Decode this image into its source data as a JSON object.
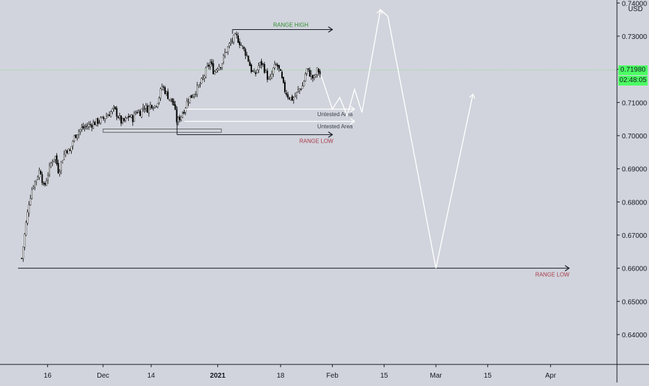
{
  "chart_data": {
    "type": "candlestick",
    "symbol_unit": "USD",
    "ylim": [
      0.63,
      0.74
    ],
    "y_ticks": [
      "0.74000",
      "0.73000",
      "0.72000",
      "0.71000",
      "0.70000",
      "0.69000",
      "0.68000",
      "0.67000",
      "0.66000",
      "0.65000",
      "0.64000"
    ],
    "x_ticks": [
      {
        "label": "16",
        "date": "2020-11-16"
      },
      {
        "label": "Dec",
        "date": "2020-12-01"
      },
      {
        "label": "14",
        "date": "2020-12-14"
      },
      {
        "label": "2021",
        "date": "2021-01-01"
      },
      {
        "label": "18",
        "date": "2021-01-18"
      },
      {
        "label": "Feb",
        "date": "2021-02-01"
      },
      {
        "label": "15",
        "date": "2021-02-15"
      },
      {
        "label": "Mar",
        "date": "2021-03-01"
      },
      {
        "label": "15",
        "date": "2021-03-15"
      },
      {
        "label": "Apr",
        "date": "2021-04-01"
      }
    ],
    "last_price": "0.71980",
    "countdown": "02:48:05",
    "colors": {
      "background": "#d1d4dc",
      "candle_up": "#ffffff",
      "candle_down": "#000000",
      "wick": "#000000",
      "projection": "#ffffff",
      "last_price_tag": "#4cff63",
      "range_high_text": "#2e8b2e",
      "range_low_text": "#a83a4a",
      "price_line": "#7ee07e"
    },
    "price_path": [
      [
        "2020-11-09",
        0.663
      ],
      [
        "2020-11-10",
        0.672
      ],
      [
        "2020-11-11",
        0.68
      ],
      [
        "2020-11-12",
        0.685
      ],
      [
        "2020-11-13",
        0.687
      ],
      [
        "2020-11-14",
        0.69
      ],
      [
        "2020-11-15",
        0.684
      ],
      [
        "2020-11-16",
        0.688
      ],
      [
        "2020-11-17",
        0.692
      ],
      [
        "2020-11-18",
        0.694
      ],
      [
        "2020-11-19",
        0.689
      ],
      [
        "2020-11-20",
        0.693
      ],
      [
        "2020-11-21",
        0.696
      ],
      [
        "2020-11-22",
        0.695
      ],
      [
        "2020-11-23",
        0.699
      ],
      [
        "2020-11-24",
        0.701
      ],
      [
        "2020-11-25",
        0.702
      ],
      [
        "2020-11-26",
        0.7025
      ],
      [
        "2020-11-27",
        0.703
      ],
      [
        "2020-11-28",
        0.7035
      ],
      [
        "2020-11-29",
        0.704
      ],
      [
        "2020-11-30",
        0.7045
      ],
      [
        "2020-12-01",
        0.705
      ],
      [
        "2020-12-02",
        0.706
      ],
      [
        "2020-12-03",
        0.707
      ],
      [
        "2020-12-04",
        0.708
      ],
      [
        "2020-12-05",
        0.706
      ],
      [
        "2020-12-06",
        0.704
      ],
      [
        "2020-12-07",
        0.7045
      ],
      [
        "2020-12-08",
        0.706
      ],
      [
        "2020-12-09",
        0.705
      ],
      [
        "2020-12-10",
        0.7075
      ],
      [
        "2020-12-11",
        0.707
      ],
      [
        "2020-12-12",
        0.709
      ],
      [
        "2020-12-13",
        0.708
      ],
      [
        "2020-12-14",
        0.7095
      ],
      [
        "2020-12-15",
        0.709
      ],
      [
        "2020-12-16",
        0.711
      ],
      [
        "2020-12-17",
        0.715
      ],
      [
        "2020-12-18",
        0.713
      ],
      [
        "2020-12-19",
        0.711
      ],
      [
        "2020-12-20",
        0.71
      ],
      [
        "2020-12-21",
        0.704
      ],
      [
        "2020-12-22",
        0.706
      ],
      [
        "2020-12-23",
        0.708
      ],
      [
        "2020-12-24",
        0.711
      ],
      [
        "2020-12-25",
        0.712
      ],
      [
        "2020-12-26",
        0.7135
      ],
      [
        "2020-12-27",
        0.715
      ],
      [
        "2020-12-28",
        0.717
      ],
      [
        "2020-12-29",
        0.72
      ],
      [
        "2020-12-30",
        0.722
      ],
      [
        "2020-12-31",
        0.719
      ],
      [
        "2021-01-01",
        0.721
      ],
      [
        "2021-01-02",
        0.7215
      ],
      [
        "2021-01-03",
        0.725
      ],
      [
        "2021-01-04",
        0.727
      ],
      [
        "2021-01-05",
        0.729
      ],
      [
        "2021-01-06",
        0.73
      ],
      [
        "2021-01-07",
        0.728
      ],
      [
        "2021-01-08",
        0.726
      ],
      [
        "2021-01-09",
        0.724
      ],
      [
        "2021-01-10",
        0.72
      ],
      [
        "2021-01-11",
        0.718
      ],
      [
        "2021-01-12",
        0.721
      ],
      [
        "2021-01-13",
        0.722
      ],
      [
        "2021-01-14",
        0.719
      ],
      [
        "2021-01-15",
        0.716
      ],
      [
        "2021-01-16",
        0.72
      ],
      [
        "2021-01-17",
        0.7215
      ],
      [
        "2021-01-18",
        0.7185
      ],
      [
        "2021-01-19",
        0.714
      ],
      [
        "2021-01-20",
        0.712
      ],
      [
        "2021-01-21",
        0.711
      ],
      [
        "2021-01-22",
        0.712
      ],
      [
        "2021-01-23",
        0.714
      ],
      [
        "2021-01-24",
        0.715
      ],
      [
        "2021-01-25",
        0.72
      ],
      [
        "2021-01-26",
        0.7185
      ],
      [
        "2021-01-27",
        0.717
      ],
      [
        "2021-01-28",
        0.72
      ],
      [
        "2021-01-29",
        0.718
      ]
    ],
    "projection_path": [
      [
        "2021-01-29",
        0.718
      ],
      [
        "2021-02-01",
        0.708
      ],
      [
        "2021-02-03",
        0.7115
      ],
      [
        "2021-02-05",
        0.706
      ],
      [
        "2021-02-07",
        0.714
      ],
      [
        "2021-02-09",
        0.707
      ],
      [
        "2021-02-14",
        0.738
      ],
      [
        "2021-02-16",
        0.736
      ],
      [
        "2021-03-01",
        0.66
      ],
      [
        "2021-03-11",
        0.7125
      ]
    ],
    "annotations": [
      {
        "kind": "range_high",
        "text": "RANGE HIGH",
        "price": 0.732,
        "from": "2021-01-05",
        "to": "2021-02-01"
      },
      {
        "kind": "range_low_near",
        "text": "RANGE LOW",
        "price": 0.7003,
        "from": "2020-12-21",
        "to": "2021-02-01"
      },
      {
        "kind": "range_low_far",
        "text": "RANGE LOW",
        "price": 0.66,
        "from": "2020-11-08",
        "to": "2021-04-06"
      },
      {
        "kind": "untested_1",
        "text": "Untested Area",
        "price": 0.708,
        "from": "2020-12-23",
        "to": "2021-02-07"
      },
      {
        "kind": "untested_2",
        "text": "Untested Area",
        "price": 0.7043,
        "from": "2020-12-23",
        "to": "2021-02-07"
      }
    ],
    "box": {
      "from": "2020-12-01",
      "to": "2021-01-02",
      "price_top": 0.702,
      "price_bottom": 0.701
    }
  }
}
